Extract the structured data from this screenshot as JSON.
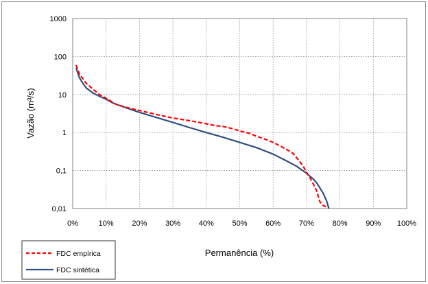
{
  "chart_data": {
    "type": "line",
    "xlabel": "Permanência (%)",
    "ylabel": "Vazão (m³/s)",
    "y_scale": "log",
    "xlim": [
      0,
      100
    ],
    "ylim": [
      0.01,
      1000
    ],
    "x_ticks": [
      "0%",
      "10%",
      "20%",
      "30%",
      "40%",
      "50%",
      "60%",
      "70%",
      "80%",
      "90%",
      "100%"
    ],
    "y_ticks": [
      "0,01",
      "0,1",
      "1",
      "10",
      "100",
      "1000"
    ],
    "grid": true,
    "legend_position": "bottom-left",
    "series": [
      {
        "name": "FDC empírica",
        "color": "#ff0000",
        "dash": "dashed",
        "x": [
          1,
          2,
          4,
          6,
          8,
          10,
          13,
          16,
          20,
          25,
          30,
          35,
          40,
          43,
          45,
          48,
          50,
          53,
          55,
          58,
          60,
          62,
          63,
          65,
          66,
          67,
          68,
          69,
          70,
          71,
          72,
          73,
          74,
          75,
          76
        ],
        "y": [
          60,
          35,
          20,
          14,
          10,
          8,
          5.5,
          4.6,
          3.8,
          3.0,
          2.4,
          2.05,
          1.7,
          1.5,
          1.45,
          1.25,
          1.1,
          0.95,
          0.8,
          0.65,
          0.55,
          0.45,
          0.4,
          0.32,
          0.28,
          0.22,
          0.17,
          0.13,
          0.09,
          0.065,
          0.045,
          0.03,
          0.015,
          0.012,
          0.011
        ]
      },
      {
        "name": "FDC sintética",
        "color": "#2f4f80",
        "dash": "solid",
        "x": [
          1,
          2,
          3,
          4,
          6,
          8,
          10,
          12,
          15,
          20,
          25,
          30,
          35,
          40,
          45,
          50,
          55,
          60,
          64,
          67,
          70,
          72,
          73,
          74,
          75,
          76,
          76.7
        ],
        "y": [
          50,
          28,
          20,
          15,
          11,
          9,
          7.5,
          6,
          4.8,
          3.4,
          2.5,
          1.85,
          1.35,
          1.0,
          0.75,
          0.55,
          0.4,
          0.27,
          0.18,
          0.13,
          0.085,
          0.06,
          0.048,
          0.035,
          0.025,
          0.016,
          0.01
        ]
      }
    ]
  }
}
